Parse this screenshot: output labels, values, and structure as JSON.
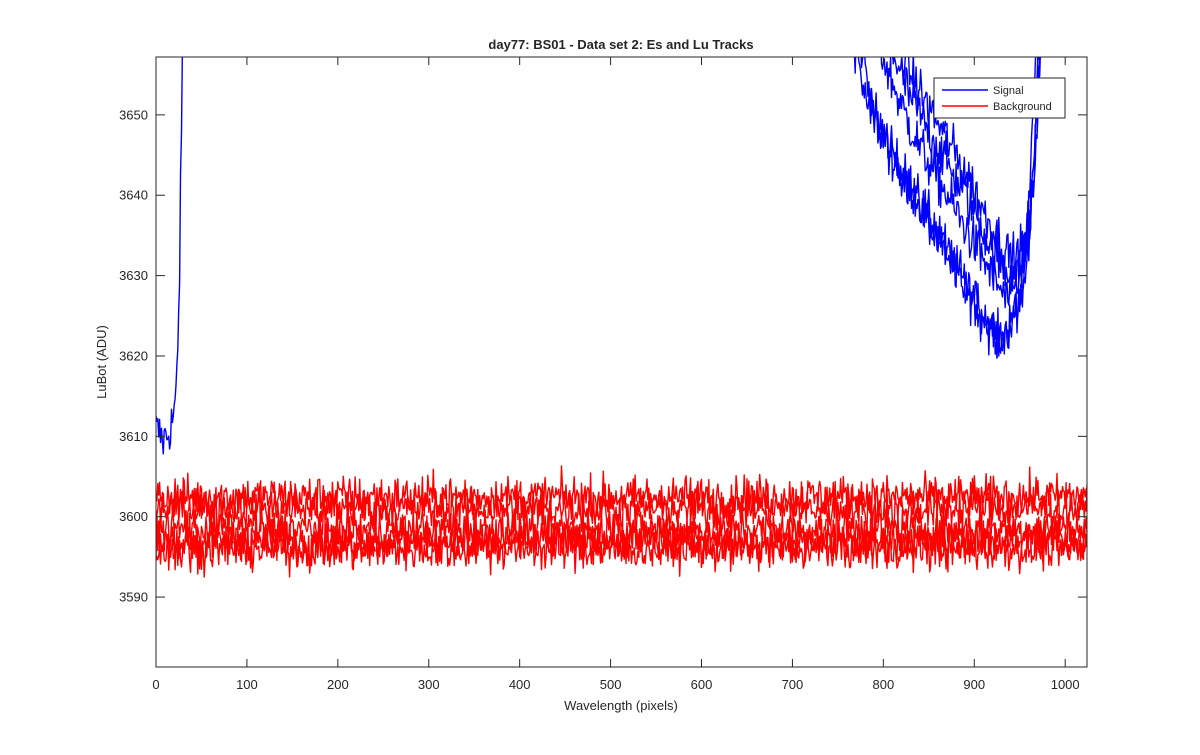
{
  "chart_data": {
    "type": "line",
    "title": "day77: BS01 - Data set 2: Es and Lu Tracks",
    "xlabel": "Wavelength (pixels)",
    "ylabel": "LuBot (ADU)",
    "xlim": [
      0,
      1024
    ],
    "ylim": [
      3581.3,
      3657.2
    ],
    "xticks": [
      0,
      100,
      200,
      300,
      400,
      500,
      600,
      700,
      800,
      900,
      1000
    ],
    "yticks": [
      3590,
      3600,
      3610,
      3620,
      3630,
      3640,
      3650
    ],
    "grid": false,
    "legend_position": "top-right",
    "series": [
      {
        "name": "Signal",
        "color": "#0000ff",
        "traces": [
          {
            "x": [
              0,
              8,
              14,
              18,
              22,
              24,
              26,
              27,
              28,
              29,
              30
            ],
            "y": [
              3611,
              3609.5,
              3610.5,
              3612,
              3615,
              3620,
              3630,
              3642,
              3650,
              3655,
              3660
            ]
          },
          {
            "x": [
              760,
              780,
              800,
              820,
              840,
              860,
              880,
              900,
              910,
              920,
              930,
              940,
              950,
              955,
              960,
              963,
              966,
              970
            ],
            "y": [
              3665,
              3652,
              3647,
              3643,
              3639,
              3635,
              3630,
              3627,
              3625,
              3624,
              3622,
              3624,
              3628,
              3632,
              3638,
              3646,
              3654,
              3662
            ]
          },
          {
            "x": [
              765,
              790,
              810,
              830,
              850,
              870,
              890,
              905,
              915,
              925,
              935,
              945,
              955,
              960,
              964,
              968,
              972
            ],
            "y": [
              3665,
              3650,
              3645,
              3641,
              3637,
              3633,
              3629,
              3626,
              3624,
              3622,
              3623,
              3625,
              3629,
              3634,
              3642,
              3652,
              3662
            ]
          },
          {
            "x": [
              780,
              800,
              820,
              840,
              860,
              880,
              900,
              915,
              925,
              935,
              945,
              955,
              962,
              966,
              970,
              974
            ],
            "y": [
              3665,
              3657,
              3651,
              3646,
              3642,
              3638,
              3634,
              3631,
              3629,
              3627,
              3628,
              3631,
              3636,
              3644,
              3654,
              3664
            ]
          },
          {
            "x": [
              790,
              810,
              830,
              850,
              870,
              890,
              905,
              920,
              930,
              940,
              950,
              958,
              964,
              968,
              972,
              976
            ],
            "y": [
              3665,
              3658,
              3652,
              3648,
              3644,
              3640,
              3637,
              3633,
              3631,
              3630,
              3631,
              3634,
              3640,
              3648,
              3656,
              3666
            ]
          },
          {
            "x": [
              795,
              815,
              835,
              855,
              875,
              895,
              910,
              925,
              935,
              945,
              955,
              962,
              967,
              971,
              975
            ],
            "y": [
              3665,
              3659,
              3654,
              3650,
              3646,
              3642,
              3638,
              3635,
              3633,
              3632,
              3634,
              3638,
              3645,
              3654,
              3664
            ]
          }
        ]
      },
      {
        "name": "Background",
        "color": "#ff0000",
        "traces": [
          {
            "x": [
              0,
              1024
            ],
            "y": [
              3602.5,
              3602.5
            ]
          },
          {
            "x": [
              0,
              1024
            ],
            "y": [
              3601.0,
              3601.0
            ]
          },
          {
            "x": [
              0,
              1024
            ],
            "y": [
              3598.5,
              3598.5
            ]
          },
          {
            "x": [
              0,
              1024
            ],
            "y": [
              3597.0,
              3597.0
            ]
          },
          {
            "x": [
              0,
              1024
            ],
            "y": [
              3596.0,
              3596.0
            ]
          }
        ]
      }
    ]
  }
}
